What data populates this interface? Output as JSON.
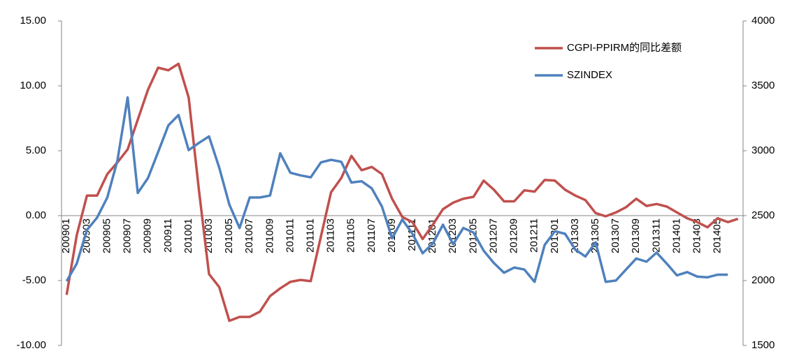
{
  "chart_data": {
    "type": "line",
    "categories": [
      "200901",
      null,
      "200903",
      null,
      "200905",
      null,
      "200907",
      null,
      "200909",
      null,
      "200911",
      null,
      "201001",
      null,
      "201003",
      null,
      "201005",
      null,
      "201007",
      null,
      "201009",
      null,
      "201011",
      null,
      "201101",
      null,
      "201103",
      null,
      "201105",
      null,
      "201107",
      null,
      "201109",
      null,
      "201111",
      null,
      "201201",
      null,
      "201203",
      null,
      "201205",
      null,
      "201207",
      null,
      "201209",
      null,
      "201211",
      null,
      "201301",
      null,
      "201303",
      null,
      "201305",
      null,
      "201307",
      null,
      "201309",
      null,
      "201311",
      null,
      "201401",
      null,
      "201403",
      null,
      "201405",
      null,
      null
    ],
    "series": [
      {
        "name": "CGPI-PPIRM的同比差额",
        "color": "#c0504d",
        "values": [
          -6.1,
          -1.5,
          1.55,
          1.55,
          3.2,
          4.1,
          5.1,
          7.4,
          9.7,
          11.4,
          11.2,
          11.7,
          9.1,
          2.0,
          -4.5,
          -5.5,
          -8.1,
          -7.8,
          -7.8,
          -7.4,
          -6.2,
          -5.6,
          -5.1,
          -4.95,
          -5.05,
          -1.6,
          1.8,
          2.9,
          4.6,
          3.5,
          3.75,
          3.2,
          1.3,
          -0.1,
          -0.5,
          -1.8,
          -0.7,
          0.5,
          1.0,
          1.3,
          1.45,
          2.7,
          2.0,
          1.1,
          1.1,
          1.95,
          1.85,
          2.75,
          2.7,
          2.0,
          1.55,
          1.2,
          0.2,
          -0.05,
          0.25,
          0.65,
          1.3,
          0.75,
          0.9,
          0.7,
          0.25,
          -0.2,
          -0.5,
          -0.9,
          -0.2,
          -0.5,
          -0.25
        ]
      },
      {
        "name": "SZINDEX",
        "color": "#4f81bd",
        "axis": "y2",
        "values": [
          1995,
          2130,
          2390,
          2485,
          2640,
          2925,
          3410,
          2675,
          2790,
          2990,
          3195,
          3275,
          3005,
          3060,
          3110,
          2870,
          2585,
          2405,
          2640,
          2640,
          2655,
          2980,
          2830,
          2810,
          2795,
          2910,
          2930,
          2915,
          2755,
          2765,
          2710,
          2570,
          2325,
          2470,
          2360,
          2210,
          2285,
          2430,
          2280,
          2405,
          2370,
          2230,
          2135,
          2060,
          2100,
          2085,
          1990,
          2275,
          2380,
          2360,
          2240,
          2185,
          2295,
          1990,
          2000,
          2085,
          2170,
          2145,
          2215,
          2130,
          2040,
          2065,
          2030,
          2025,
          2045,
          2045,
          null
        ]
      }
    ],
    "ylim": [
      -10,
      15
    ],
    "yticks": [
      {
        "value": -10,
        "label": "-10.00"
      },
      {
        "value": -5,
        "label": "-5.00"
      },
      {
        "value": 0,
        "label": "0.00"
      },
      {
        "value": 5,
        "label": "5.00"
      },
      {
        "value": 10,
        "label": "10.00"
      },
      {
        "value": 15,
        "label": "15.00"
      }
    ],
    "y2lim": [
      1500,
      4000
    ],
    "y2ticks": [
      1500,
      2000,
      2500,
      3000,
      3500,
      4000
    ],
    "legend": "top-right"
  }
}
